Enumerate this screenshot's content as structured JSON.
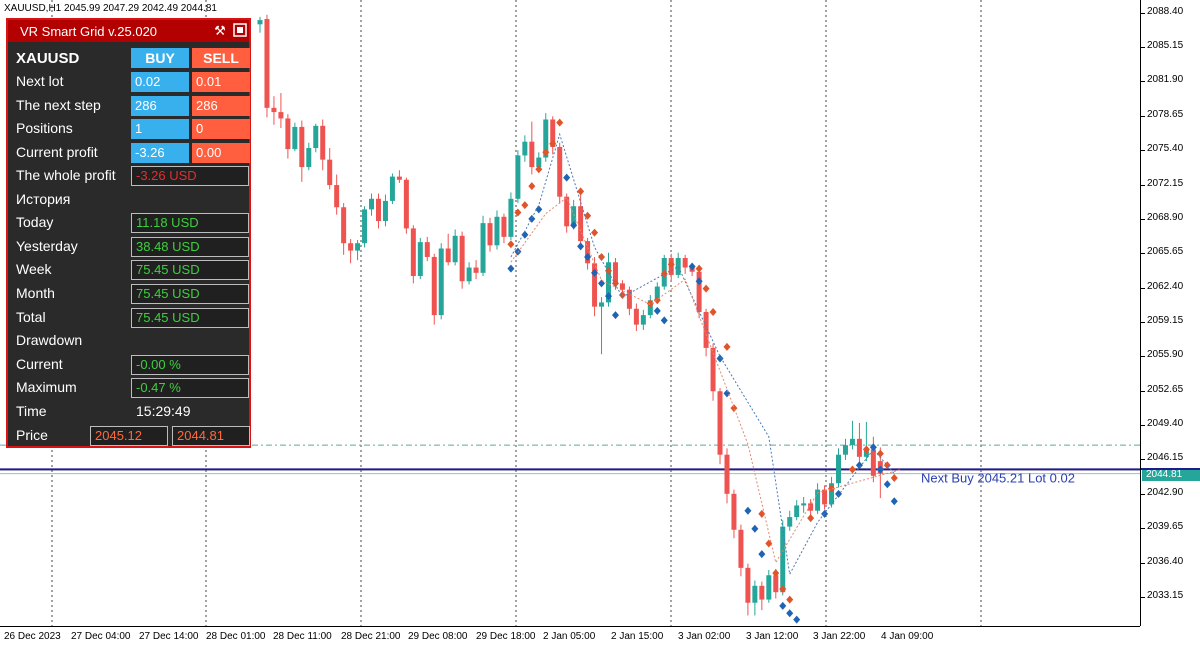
{
  "chart": {
    "header": "XAUUSD,H1  2045.99 2047.29 2042.49 2044.81",
    "symbol": "XAUUSD",
    "timeframe": "H1",
    "open": 2045.99,
    "high": 2047.29,
    "low": 2042.49,
    "close": 2044.81,
    "current_price_label": "2044.81",
    "next_buy_label": "Next Buy 2045.21 Lot 0.02",
    "colors": {
      "bull": "#26a69a",
      "bear": "#ef5350",
      "buy_arrow": "#1e64b4",
      "sell_arrow": "#e0542a",
      "price_tag": "#26a69a",
      "level_line": "#1c1c8c"
    },
    "price_axis": [
      "2088.40",
      "2085.15",
      "2081.90",
      "2078.65",
      "2075.40",
      "2072.15",
      "2068.90",
      "2065.65",
      "2062.40",
      "2059.15",
      "2055.90",
      "2052.65",
      "2049.40",
      "2046.15",
      "2042.90",
      "2039.65",
      "2036.40",
      "2033.15"
    ],
    "time_axis": [
      "26 Dec 2023",
      "27 Dec 04:00",
      "27 Dec 14:00",
      "28 Dec 01:00",
      "28 Dec 11:00",
      "28 Dec 21:00",
      "29 Dec 08:00",
      "29 Dec 18:00",
      "2 Jan 05:00",
      "2 Jan 15:00",
      "3 Jan 02:00",
      "3 Jan 12:00",
      "3 Jan 22:00",
      "4 Jan 09:00"
    ]
  },
  "chart_data": {
    "type": "candlestick",
    "title": "XAUUSD,H1",
    "ylim": [
      2030.4,
      2089.6
    ],
    "candles": [
      [
        2087.3,
        2088.0,
        2086.5,
        2087.7
      ],
      [
        2087.8,
        2088.2,
        2078.5,
        2079.4
      ],
      [
        2079.4,
        2080.5,
        2077.8,
        2079.0
      ],
      [
        2079.0,
        2080.8,
        2077.5,
        2078.4
      ],
      [
        2078.4,
        2078.8,
        2074.6,
        2075.5
      ],
      [
        2075.5,
        2078.0,
        2075.3,
        2077.6
      ],
      [
        2077.6,
        2078.2,
        2072.4,
        2073.8
      ],
      [
        2073.8,
        2076.1,
        2073.5,
        2075.6
      ],
      [
        2075.6,
        2077.9,
        2075.2,
        2077.7
      ],
      [
        2077.7,
        2078.3,
        2073.5,
        2074.5
      ],
      [
        2074.5,
        2075.6,
        2071.7,
        2072.1
      ],
      [
        2072.1,
        2073.1,
        2069.3,
        2070.0
      ],
      [
        2070.0,
        2070.4,
        2065.5,
        2066.6
      ],
      [
        2066.6,
        2067.0,
        2064.7,
        2065.9
      ],
      [
        2065.9,
        2066.9,
        2065.0,
        2066.6
      ],
      [
        2066.6,
        2070.1,
        2066.2,
        2069.8
      ],
      [
        2069.8,
        2071.3,
        2069.2,
        2070.8
      ],
      [
        2070.8,
        2071.3,
        2068.0,
        2068.7
      ],
      [
        2068.7,
        2071.2,
        2068.2,
        2070.6
      ],
      [
        2070.6,
        2073.2,
        2070.3,
        2072.9
      ],
      [
        2072.9,
        2073.5,
        2072.3,
        2072.6
      ],
      [
        2072.6,
        2072.8,
        2067.5,
        2068.0
      ],
      [
        2068.0,
        2068.3,
        2062.8,
        2063.5
      ],
      [
        2063.5,
        2067.1,
        2063.2,
        2066.7
      ],
      [
        2066.7,
        2067.2,
        2064.9,
        2065.3
      ],
      [
        2065.3,
        2065.6,
        2058.9,
        2059.8
      ],
      [
        2059.8,
        2066.6,
        2059.4,
        2066.1
      ],
      [
        2066.1,
        2067.5,
        2064.5,
        2064.8
      ],
      [
        2064.8,
        2067.9,
        2064.5,
        2067.3
      ],
      [
        2067.3,
        2067.7,
        2062.3,
        2063.0
      ],
      [
        2063.0,
        2064.8,
        2062.7,
        2064.3
      ],
      [
        2064.3,
        2065.0,
        2063.2,
        2063.8
      ],
      [
        2063.8,
        2069.2,
        2063.5,
        2068.5
      ],
      [
        2068.5,
        2069.0,
        2065.8,
        2066.4
      ],
      [
        2066.4,
        2069.7,
        2066.0,
        2069.1
      ],
      [
        2069.1,
        2069.4,
        2066.6,
        2067.2
      ],
      [
        2067.2,
        2071.4,
        2066.9,
        2070.8
      ],
      [
        2070.8,
        2075.4,
        2070.4,
        2074.9
      ],
      [
        2074.9,
        2076.8,
        2074.3,
        2076.2
      ],
      [
        2076.2,
        2078.1,
        2073.1,
        2073.8
      ],
      [
        2073.8,
        2075.2,
        2073.5,
        2074.7
      ],
      [
        2074.7,
        2078.9,
        2074.3,
        2078.3
      ],
      [
        2078.3,
        2078.6,
        2075.0,
        2075.7
      ],
      [
        2075.7,
        2076.1,
        2070.4,
        2071.0
      ],
      [
        2071.0,
        2071.3,
        2067.6,
        2068.2
      ],
      [
        2068.2,
        2070.7,
        2067.9,
        2070.1
      ],
      [
        2070.1,
        2071.2,
        2066.2,
        2066.8
      ],
      [
        2066.8,
        2067.1,
        2064.1,
        2064.7
      ],
      [
        2064.7,
        2065.3,
        2059.7,
        2060.6
      ],
      [
        2060.6,
        2061.5,
        2056.1,
        2061.0
      ],
      [
        2061.0,
        2065.7,
        2060.6,
        2064.8
      ],
      [
        2064.8,
        2065.2,
        2062.2,
        2062.8
      ],
      [
        2062.8,
        2063.1,
        2061.8,
        2062.2
      ],
      [
        2062.2,
        2062.5,
        2059.8,
        2060.4
      ],
      [
        2060.4,
        2060.9,
        2058.3,
        2058.9
      ],
      [
        2058.9,
        2060.3,
        2058.4,
        2059.8
      ],
      [
        2059.8,
        2061.7,
        2059.5,
        2061.2
      ],
      [
        2061.2,
        2062.9,
        2060.9,
        2062.5
      ],
      [
        2062.5,
        2065.5,
        2062.2,
        2065.2
      ],
      [
        2065.2,
        2065.6,
        2063.0,
        2063.6
      ],
      [
        2063.6,
        2065.7,
        2063.3,
        2065.2
      ],
      [
        2065.2,
        2065.5,
        2063.7,
        2064.3
      ],
      [
        2064.3,
        2064.7,
        2063.5,
        2063.9
      ],
      [
        2063.9,
        2064.4,
        2059.5,
        2060.1
      ],
      [
        2060.1,
        2060.4,
        2055.9,
        2056.7
      ],
      [
        2056.7,
        2057.1,
        2051.7,
        2052.6
      ],
      [
        2052.6,
        2052.9,
        2045.7,
        2046.6
      ],
      [
        2046.6,
        2047.2,
        2042.0,
        2042.9
      ],
      [
        2042.9,
        2043.3,
        2038.7,
        2039.5
      ],
      [
        2039.5,
        2040.0,
        2035.1,
        2035.9
      ],
      [
        2035.9,
        2036.3,
        2031.4,
        2032.6
      ],
      [
        2032.6,
        2034.7,
        2031.4,
        2034.2
      ],
      [
        2034.2,
        2034.6,
        2031.9,
        2032.9
      ],
      [
        2032.9,
        2035.7,
        2032.6,
        2035.2
      ],
      [
        2035.2,
        2035.8,
        2033.0,
        2033.6
      ],
      [
        2033.6,
        2040.4,
        2033.3,
        2039.8
      ],
      [
        2039.8,
        2041.3,
        2039.4,
        2040.7
      ],
      [
        2040.7,
        2042.3,
        2040.4,
        2041.8
      ],
      [
        2041.8,
        2042.6,
        2041.1,
        2042.0
      ],
      [
        2042.0,
        2042.4,
        2040.9,
        2041.3
      ],
      [
        2041.3,
        2043.9,
        2041.0,
        2043.3
      ],
      [
        2043.3,
        2043.7,
        2041.4,
        2041.9
      ],
      [
        2041.9,
        2044.5,
        2041.6,
        2043.9
      ],
      [
        2043.9,
        2047.2,
        2043.5,
        2046.6
      ],
      [
        2046.6,
        2048.1,
        2046.1,
        2047.5
      ],
      [
        2047.5,
        2049.8,
        2047.1,
        2048.1
      ],
      [
        2048.1,
        2049.6,
        2045.9,
        2046.4
      ],
      [
        2046.4,
        2049.7,
        2046.0,
        2047.1
      ],
      [
        2047.1,
        2048.3,
        2044.0,
        2044.6
      ],
      [
        2045.99,
        2047.29,
        2042.49,
        2044.81
      ]
    ]
  },
  "panel": {
    "title": "VR Smart Grid v.25.020",
    "symbol": "XAUUSD",
    "buy_header": "BUY",
    "sell_header": "SELL",
    "labels": {
      "next_lot": "Next lot",
      "next_step": "The next step",
      "positions": "Positions",
      "current_profit": "Current profit",
      "whole_profit": "The whole profit",
      "history": "История",
      "today": "Today",
      "yesterday": "Yesterday",
      "week": "Week",
      "month": "Month",
      "total": "Total",
      "drawdown": "Drawdown",
      "current": "Current",
      "maximum": "Maximum",
      "time": "Time",
      "price": "Price"
    },
    "values": {
      "next_lot_buy": "0.02",
      "next_lot_sell": "0.01",
      "next_step_buy": "286",
      "next_step_sell": "286",
      "positions_buy": "1",
      "positions_sell": "0",
      "current_profit_buy": "-3.26",
      "current_profit_sell": "0.00",
      "whole_profit": "-3.26 USD",
      "today": "11.18 USD",
      "yesterday": "38.48 USD",
      "week": "75.45 USD",
      "month": "75.45 USD",
      "total": "75.45 USD",
      "dd_current": "-0.00 %",
      "dd_maximum": "-0.47 %",
      "time": "15:29:49",
      "price_buy": "2045.12",
      "price_sell": "2044.81"
    },
    "icons": {
      "settings": "hammer-wrench-icon",
      "minimize": "minimize-icon"
    }
  }
}
